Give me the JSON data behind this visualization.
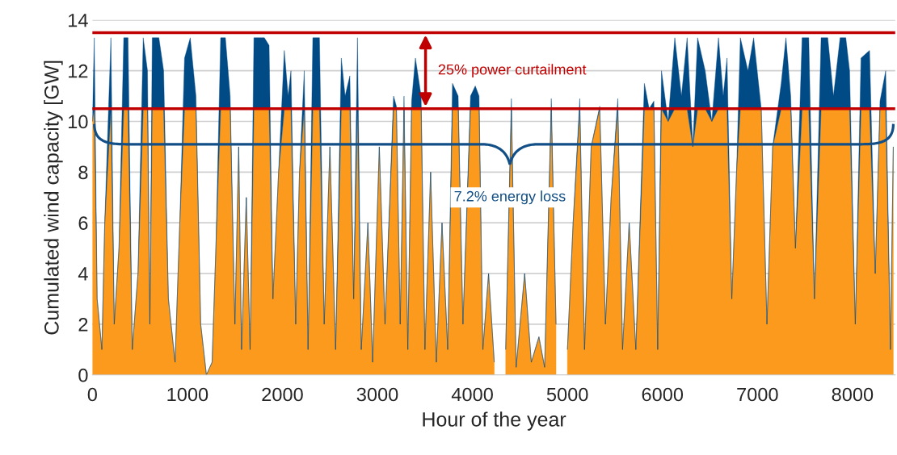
{
  "chart_data": {
    "type": "area",
    "stacked": true,
    "xlabel": "Hour of the year",
    "ylabel": "Cumulated wind capacity [GW]",
    "x": [
      0,
      20,
      50,
      100,
      130,
      195,
      230,
      280,
      330,
      375,
      420,
      480,
      535,
      580,
      605,
      630,
      700,
      750,
      800,
      870,
      920,
      970,
      1030,
      1090,
      1140,
      1200,
      1260,
      1300,
      1350,
      1400,
      1450,
      1500,
      1540,
      1570,
      1620,
      1660,
      1700,
      1760,
      1810,
      1860,
      1900,
      1960,
      2020,
      2060,
      2090,
      2140,
      2180,
      2230,
      2270,
      2320,
      2360,
      2390,
      2440,
      2500,
      2560,
      2620,
      2660,
      2710,
      2750,
      2790,
      2830,
      2900,
      2950,
      3020,
      3080,
      3170,
      3200,
      3240,
      3280,
      3320,
      3360,
      3400,
      3460,
      3500,
      3560,
      3620,
      3680,
      3740,
      3790,
      3850,
      3900,
      3980,
      4030,
      4070,
      4110,
      4170,
      4230,
      4300,
      4350,
      4410,
      4460,
      4550,
      4620,
      4700,
      4760,
      4830,
      4880,
      4950,
      5000,
      5060,
      5130,
      5180,
      5250,
      5340,
      5400,
      5460,
      5530,
      5580,
      5650,
      5720,
      5810,
      5860,
      5910,
      5950,
      5990,
      6060,
      6130,
      6200,
      6260,
      6320,
      6370,
      6450,
      6520,
      6590,
      6640,
      6680,
      6730,
      6780,
      6820,
      6900,
      6960,
      7040,
      7100,
      7160,
      7250,
      7300,
      7350,
      7400,
      7470,
      7540,
      7600,
      7670,
      7740,
      7800,
      7870,
      7930,
      7970,
      8030,
      8090,
      8180,
      8240,
      8290,
      8350,
      8400,
      8430
    ],
    "series": [
      {
        "color": "#fb9a1c",
        "values": [
          10,
          10.5,
          3,
          1,
          6,
          10.5,
          2,
          5,
          10.5,
          10.5,
          1,
          4,
          10.5,
          10.5,
          2,
          10.5,
          10.5,
          10.5,
          3,
          0.5,
          6,
          10.5,
          10.5,
          10.5,
          2,
          0,
          0.5,
          5,
          10.5,
          10.5,
          10.5,
          2,
          9,
          1,
          7,
          1,
          10.5,
          10.5,
          10.5,
          10.5,
          3,
          8,
          10.5,
          10.5,
          10.5,
          2,
          8,
          10.5,
          1,
          10.5,
          10.5,
          10.5,
          2,
          9,
          1,
          10.5,
          10.5,
          10.5,
          3,
          10.5,
          1,
          6,
          0.5,
          9,
          2,
          10.5,
          10.5,
          2,
          10.5,
          1,
          10.5,
          10.5,
          10.5,
          1,
          8,
          0.5,
          6,
          1,
          10.5,
          10.5,
          2,
          10.5,
          10.5,
          10.5,
          1,
          4,
          0.5,
          null,
          1,
          10.5,
          0.3,
          4,
          0.5,
          1.5,
          0.3,
          10.5,
          2,
          null,
          1,
          6,
          10.5,
          1,
          9,
          10.5,
          2,
          7,
          10.5,
          1,
          6,
          1,
          10.5,
          10.5,
          10.5,
          1,
          10.5,
          10,
          10.5,
          10.5,
          10.5,
          9,
          10.5,
          10.5,
          10,
          10.5,
          10.5,
          10.5,
          3,
          8,
          10.5,
          10.5,
          10.5,
          10.5,
          2,
          9,
          10.5,
          10.5,
          10.5,
          5,
          10.5,
          10.5,
          3,
          10.5,
          10.5,
          10.5,
          10.5,
          10.5,
          10.5,
          2,
          10.5,
          10.5,
          4,
          10.5,
          10.5,
          1,
          9
        ]
      },
      {
        "color": "#004a86",
        "values": [
          0,
          2.8,
          0,
          0,
          0,
          2.8,
          0,
          0,
          2.8,
          2.8,
          0,
          0,
          2.8,
          1.5,
          0,
          2.8,
          2.8,
          1.5,
          0,
          0,
          0,
          2,
          2.8,
          0.5,
          0,
          0,
          0,
          0,
          2.8,
          2.8,
          0.5,
          0,
          0,
          0,
          0,
          0,
          2.8,
          2.8,
          2.8,
          2.5,
          0,
          0,
          2.3,
          0.5,
          1.5,
          0,
          0,
          1.5,
          0,
          2.8,
          2.8,
          2.8,
          0,
          0,
          0,
          2,
          0.5,
          1.3,
          0,
          2.8,
          0,
          0,
          0,
          0,
          0,
          0.5,
          0.1,
          0,
          0.5,
          0,
          0.3,
          2,
          0.5,
          0,
          0,
          0,
          0,
          0,
          1,
          0.5,
          0,
          0.5,
          0.9,
          0.5,
          0,
          0,
          0,
          null,
          0,
          0.4,
          0,
          0,
          0,
          0,
          0,
          0.4,
          0,
          null,
          0,
          0,
          0.4,
          0,
          0,
          0.1,
          0,
          0,
          0.4,
          0,
          0,
          0,
          1,
          0,
          0.3,
          0,
          1.5,
          0,
          2.8,
          0.5,
          2.8,
          0,
          2.8,
          1.5,
          0,
          2.8,
          0.5,
          2,
          0,
          0,
          2.8,
          1.5,
          2.8,
          0,
          0,
          0,
          1,
          2.8,
          0.5,
          0,
          2.8,
          2.8,
          0,
          2.8,
          2.8,
          0.5,
          2.8,
          2.8,
          1.5,
          0,
          2,
          2.3,
          0,
          0.3,
          1.5,
          0,
          0
        ]
      }
    ],
    "xlim": [
      0,
      8450
    ],
    "xticks": [
      0,
      1000,
      2000,
      3000,
      4000,
      5000,
      6000,
      7000,
      8000
    ],
    "ylim": [
      0,
      14
    ],
    "yticks": [
      0,
      2,
      4,
      6,
      8,
      10,
      12,
      14
    ],
    "grid": "y",
    "ref_lines": [
      {
        "axis": "y",
        "value": 10.5,
        "color": "#c00000"
      },
      {
        "axis": "y",
        "value": 13.5,
        "color": "#c00000"
      }
    ],
    "annotations": [
      "25% power curtailment",
      "7.2% energy loss"
    ]
  }
}
